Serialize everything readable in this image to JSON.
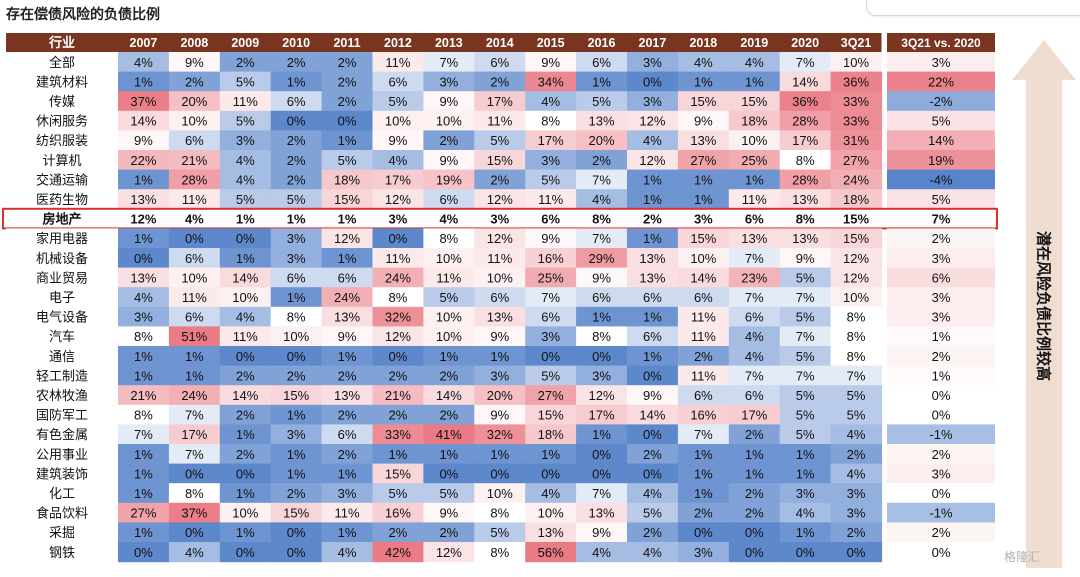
{
  "page": {
    "title": "存在偿债风险的负债比例",
    "side_label": "潜在风险负债比例较高",
    "watermark": "格隆汇"
  },
  "chart_data": {
    "type": "heatmap",
    "title": "存在偿债风险的负债比例",
    "row_header": "行业",
    "columns": [
      "2007",
      "2008",
      "2009",
      "2010",
      "2011",
      "2012",
      "2013",
      "2014",
      "2015",
      "2016",
      "2017",
      "2018",
      "2019",
      "2020",
      "3Q21"
    ],
    "change_header": "3Q21 vs. 2020",
    "highlight_row": "房地产",
    "colors": {
      "header_bg": "#7a3520",
      "cold": "#4f7ec8",
      "hot": "#e9737d",
      "highlight_border": "#d9312c",
      "arrow": "#f0ddd1"
    },
    "rows": [
      {
        "name": "全部",
        "values": [
          4,
          9,
          2,
          2,
          2,
          11,
          7,
          6,
          9,
          6,
          3,
          4,
          4,
          7,
          10
        ],
        "change": 3
      },
      {
        "name": "建筑材料",
        "values": [
          1,
          2,
          5,
          1,
          2,
          6,
          3,
          2,
          34,
          1,
          0,
          1,
          1,
          14,
          36
        ],
        "change": 22
      },
      {
        "name": "传媒",
        "values": [
          37,
          20,
          11,
          6,
          2,
          5,
          9,
          17,
          4,
          5,
          3,
          15,
          15,
          36,
          33
        ],
        "change": -2
      },
      {
        "name": "休闲服务",
        "values": [
          14,
          10,
          5,
          0,
          0,
          10,
          10,
          11,
          8,
          13,
          12,
          9,
          18,
          28,
          33
        ],
        "change": 5
      },
      {
        "name": "纺织服装",
        "values": [
          9,
          6,
          3,
          2,
          1,
          9,
          2,
          5,
          17,
          20,
          4,
          13,
          10,
          17,
          31
        ],
        "change": 14
      },
      {
        "name": "计算机",
        "values": [
          22,
          21,
          4,
          2,
          5,
          4,
          9,
          15,
          3,
          2,
          12,
          27,
          25,
          8,
          27
        ],
        "change": 19
      },
      {
        "name": "交通运输",
        "values": [
          1,
          28,
          4,
          2,
          18,
          17,
          19,
          2,
          5,
          7,
          1,
          1,
          1,
          28,
          24
        ],
        "change": -4
      },
      {
        "name": "医药生物",
        "values": [
          13,
          11,
          5,
          5,
          15,
          12,
          6,
          12,
          11,
          4,
          1,
          1,
          11,
          13,
          18
        ],
        "change": 5
      },
      {
        "name": "房地产",
        "values": [
          12,
          4,
          1,
          1,
          1,
          3,
          4,
          3,
          6,
          8,
          2,
          3,
          6,
          8,
          15
        ],
        "change": 7
      },
      {
        "name": "家用电器",
        "values": [
          1,
          0,
          0,
          3,
          12,
          0,
          8,
          12,
          9,
          7,
          1,
          15,
          13,
          13,
          15
        ],
        "change": 2
      },
      {
        "name": "机械设备",
        "values": [
          0,
          6,
          1,
          3,
          1,
          11,
          10,
          11,
          16,
          29,
          13,
          10,
          7,
          9,
          12
        ],
        "change": 3
      },
      {
        "name": "商业贸易",
        "values": [
          13,
          10,
          14,
          6,
          6,
          24,
          11,
          10,
          25,
          9,
          13,
          14,
          23,
          5,
          12
        ],
        "change": 6
      },
      {
        "name": "电子",
        "values": [
          4,
          11,
          10,
          1,
          24,
          8,
          5,
          6,
          7,
          6,
          6,
          6,
          7,
          7,
          10
        ],
        "change": 3
      },
      {
        "name": "电气设备",
        "values": [
          3,
          6,
          4,
          8,
          13,
          32,
          10,
          13,
          6,
          1,
          1,
          11,
          6,
          5,
          8
        ],
        "change": 3
      },
      {
        "name": "汽车",
        "values": [
          8,
          51,
          11,
          10,
          9,
          12,
          10,
          9,
          3,
          8,
          6,
          11,
          4,
          7,
          8
        ],
        "change": 1
      },
      {
        "name": "通信",
        "values": [
          1,
          1,
          0,
          0,
          1,
          0,
          1,
          1,
          0,
          0,
          1,
          2,
          4,
          5,
          8
        ],
        "change": 2
      },
      {
        "name": "轻工制造",
        "values": [
          1,
          1,
          2,
          2,
          2,
          2,
          2,
          3,
          5,
          3,
          0,
          11,
          7,
          7,
          7
        ],
        "change": 1
      },
      {
        "name": "农林牧渔",
        "values": [
          21,
          24,
          14,
          15,
          13,
          21,
          14,
          20,
          27,
          12,
          9,
          6,
          6,
          5,
          5
        ],
        "change": 0
      },
      {
        "name": "国防军工",
        "values": [
          8,
          7,
          2,
          1,
          2,
          2,
          2,
          9,
          15,
          17,
          14,
          16,
          17,
          5,
          5
        ],
        "change": 0
      },
      {
        "name": "有色金属",
        "values": [
          7,
          17,
          1,
          3,
          6,
          33,
          41,
          32,
          18,
          1,
          0,
          7,
          2,
          5,
          4
        ],
        "change": -1
      },
      {
        "name": "公用事业",
        "values": [
          1,
          7,
          2,
          1,
          2,
          1,
          1,
          1,
          1,
          0,
          2,
          1,
          1,
          1,
          2
        ],
        "change": 2
      },
      {
        "name": "建筑装饰",
        "values": [
          1,
          0,
          0,
          1,
          1,
          15,
          0,
          0,
          0,
          0,
          0,
          1,
          1,
          1,
          4
        ],
        "change": 3
      },
      {
        "name": "化工",
        "values": [
          1,
          8,
          1,
          2,
          3,
          5,
          5,
          10,
          4,
          7,
          4,
          1,
          2,
          3,
          3
        ],
        "change": 0
      },
      {
        "name": "食品饮料",
        "values": [
          27,
          37,
          10,
          15,
          11,
          16,
          9,
          8,
          10,
          13,
          5,
          2,
          2,
          4,
          3
        ],
        "change": -1
      },
      {
        "name": "采掘",
        "values": [
          1,
          0,
          1,
          0,
          1,
          2,
          2,
          5,
          13,
          9,
          2,
          0,
          0,
          1,
          2
        ],
        "change": 2
      },
      {
        "name": "钢铁",
        "values": [
          0,
          4,
          0,
          0,
          4,
          42,
          12,
          8,
          56,
          4,
          4,
          3,
          0,
          0,
          0
        ],
        "change": 0
      }
    ]
  }
}
